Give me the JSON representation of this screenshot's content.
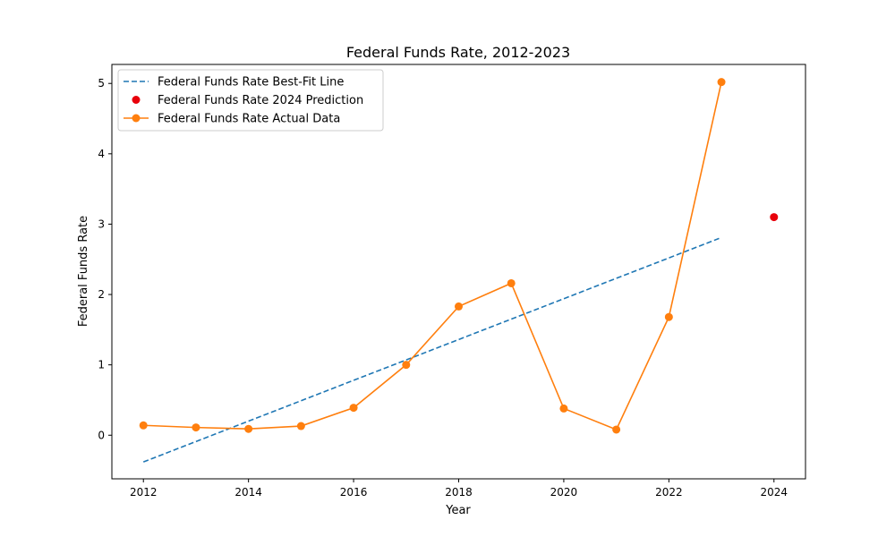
{
  "chart_data": {
    "type": "line",
    "title": "Federal Funds Rate, 2012-2023",
    "xlabel": "Year",
    "ylabel": "Federal Funds Rate",
    "xlim": [
      2011.4,
      2024.6
    ],
    "ylim": [
      -0.62,
      5.27
    ],
    "xticks": [
      2012,
      2014,
      2016,
      2018,
      2020,
      2022,
      2024
    ],
    "yticks": [
      0,
      1,
      2,
      3,
      4,
      5
    ],
    "grid": false,
    "legend_position": "top-left",
    "series": [
      {
        "name": "Federal Funds Rate Best-Fit Line",
        "kind": "dashed-line",
        "color": "#1f77b4",
        "x": [
          2012,
          2023
        ],
        "y": [
          -0.38,
          2.81
        ]
      },
      {
        "name": "Federal Funds Rate 2024 Prediction",
        "kind": "point",
        "color": "#e8000b",
        "x": [
          2024
        ],
        "y": [
          3.1
        ]
      },
      {
        "name": "Federal Funds Rate Actual Data",
        "kind": "line-marker",
        "color": "#ff7f0e",
        "x": [
          2012,
          2013,
          2014,
          2015,
          2016,
          2017,
          2018,
          2019,
          2020,
          2021,
          2022,
          2023
        ],
        "y": [
          0.14,
          0.11,
          0.09,
          0.13,
          0.39,
          1.0,
          1.83,
          2.16,
          0.38,
          0.08,
          1.68,
          5.02
        ]
      }
    ]
  }
}
